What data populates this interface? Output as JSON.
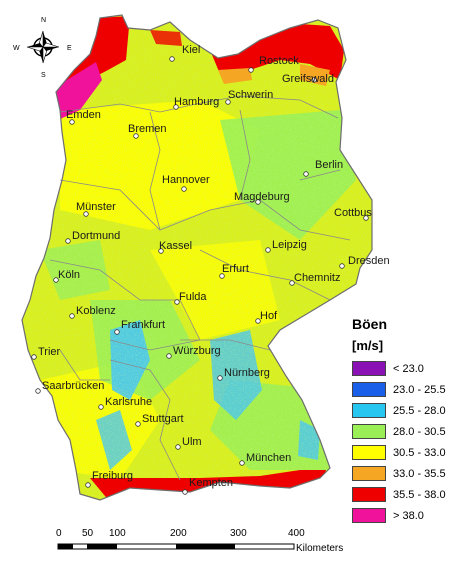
{
  "colors": {
    "water": "#ffffff",
    "base_land": "#d9ef1e",
    "yellow": "#ffff00",
    "green": "#9aef57",
    "lightblue": "#49c6f2",
    "orange": "#f5a623",
    "red": "#ee0000",
    "magenta": "#f0129a",
    "border": "#8a8a8a"
  },
  "compass": {
    "n": "N",
    "s": "S",
    "e": "E",
    "w": "W"
  },
  "cities": [
    {
      "name": "Kiel"
    },
    {
      "name": "Rostock"
    },
    {
      "name": "Greifswald"
    },
    {
      "name": "Emden"
    },
    {
      "name": "Hamburg"
    },
    {
      "name": "Schwerin"
    },
    {
      "name": "Bremen"
    },
    {
      "name": "Berlin"
    },
    {
      "name": "Hannover"
    },
    {
      "name": "Magdeburg"
    },
    {
      "name": "Münster"
    },
    {
      "name": "Cottbus"
    },
    {
      "name": "Dortmund"
    },
    {
      "name": "Kassel"
    },
    {
      "name": "Leipzig"
    },
    {
      "name": "Dresden"
    },
    {
      "name": "Köln"
    },
    {
      "name": "Erfurt"
    },
    {
      "name": "Chemnitz"
    },
    {
      "name": "Fulda"
    },
    {
      "name": "Koblenz"
    },
    {
      "name": "Frankfurt"
    },
    {
      "name": "Hof"
    },
    {
      "name": "Trier"
    },
    {
      "name": "Würzburg"
    },
    {
      "name": "Nürnberg"
    },
    {
      "name": "Saarbrücken"
    },
    {
      "name": "Karlsruhe"
    },
    {
      "name": "Stuttgart"
    },
    {
      "name": "Ulm"
    },
    {
      "name": "München"
    },
    {
      "name": "Freiburg"
    },
    {
      "name": "Kempten"
    }
  ],
  "legend": {
    "title": "Böen",
    "unit": "[m/s]",
    "classes": [
      {
        "label": "<  23.0",
        "color": "#8a12b5"
      },
      {
        "label": "23.0 -  25.5",
        "color": "#1a5fe8"
      },
      {
        "label": "25.5 -  28.0",
        "color": "#27c6f0"
      },
      {
        "label": "28.0 -  30.5",
        "color": "#9aef57"
      },
      {
        "label": "30.5 -  33.0",
        "color": "#ffff00"
      },
      {
        "label": "33.0 -  35.5",
        "color": "#f5a623"
      },
      {
        "label": "35.5 -  38.0",
        "color": "#ee0000"
      },
      {
        "label": ">  38.0",
        "color": "#f0129a"
      }
    ]
  },
  "scalebar": {
    "ticks": [
      "0",
      "50",
      "100",
      "200",
      "300",
      "400"
    ],
    "unit": "Kilometers"
  }
}
